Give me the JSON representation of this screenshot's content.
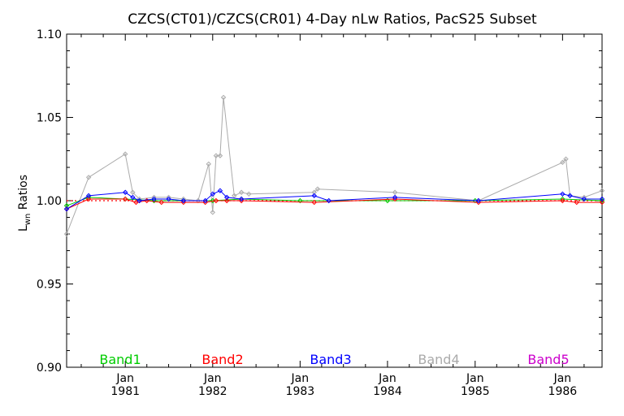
{
  "chart_data": {
    "type": "line",
    "title": "CZCS(CT01)/CZCS(CR01) 4-Day nLw Ratios, PacS25 Subset",
    "ylabel_main": "L",
    "ylabel_sub": "wn",
    "ylabel_rest": " Ratios",
    "xlabel": "",
    "ylim": [
      0.9,
      1.1
    ],
    "xlim": [
      "1980-05-01",
      "1986-06-15"
    ],
    "y_ticks": [
      {
        "value": 0.9,
        "label": "0.90"
      },
      {
        "value": 0.95,
        "label": "0.95"
      },
      {
        "value": 1.0,
        "label": "1.00"
      },
      {
        "value": 1.05,
        "label": "1.05"
      },
      {
        "value": 1.1,
        "label": "1.10"
      }
    ],
    "x_ticks": [
      {
        "date": "1981-01-01",
        "month": "Jan",
        "year": "1981"
      },
      {
        "date": "1982-01-01",
        "month": "Jan",
        "year": "1982"
      },
      {
        "date": "1983-01-01",
        "month": "Jan",
        "year": "1983"
      },
      {
        "date": "1984-01-01",
        "month": "Jan",
        "year": "1984"
      },
      {
        "date": "1985-01-01",
        "month": "Jan",
        "year": "1985"
      },
      {
        "date": "1986-01-01",
        "month": "Jan",
        "year": "1986"
      }
    ],
    "reference_line": {
      "value": 1.0,
      "color": "#ff0000",
      "style": "dotted"
    },
    "legend_placement": "bottom",
    "series": [
      {
        "name": "Band1",
        "color": "#00cc00",
        "values": [
          [
            "1980-05-01",
            0.997
          ],
          [
            "1980-08-01",
            1.002
          ],
          [
            "1981-01-01",
            1.001
          ],
          [
            "1981-05-01",
            1.0
          ],
          [
            "1981-09-01",
            1.0
          ],
          [
            "1982-01-01",
            1.0
          ],
          [
            "1982-05-01",
            1.001
          ],
          [
            "1983-01-01",
            1.0
          ],
          [
            "1984-01-01",
            1.0
          ],
          [
            "1985-01-01",
            1.0
          ],
          [
            "1986-01-01",
            1.001
          ],
          [
            "1986-06-15",
            1.0
          ]
        ]
      },
      {
        "name": "Band2",
        "color": "#ff0000",
        "values": [
          [
            "1980-05-01",
            0.995
          ],
          [
            "1980-08-01",
            1.001
          ],
          [
            "1981-01-01",
            1.001
          ],
          [
            "1981-02-15",
            0.999
          ],
          [
            "1981-04-01",
            1.0
          ],
          [
            "1981-06-01",
            0.999
          ],
          [
            "1981-09-01",
            0.999
          ],
          [
            "1981-12-01",
            0.999
          ],
          [
            "1982-01-15",
            1.0
          ],
          [
            "1982-03-01",
            1.0
          ],
          [
            "1982-05-01",
            1.0
          ],
          [
            "1983-03-01",
            0.999
          ],
          [
            "1984-02-01",
            1.001
          ],
          [
            "1985-01-15",
            0.999
          ],
          [
            "1986-01-01",
            1.0
          ],
          [
            "1986-03-01",
            0.999
          ],
          [
            "1986-06-15",
            0.999
          ]
        ]
      },
      {
        "name": "Band3",
        "color": "#0000ff",
        "values": [
          [
            "1980-05-01",
            0.995
          ],
          [
            "1980-08-01",
            1.003
          ],
          [
            "1981-01-01",
            1.005
          ],
          [
            "1981-02-01",
            1.002
          ],
          [
            "1981-03-01",
            1.0
          ],
          [
            "1981-05-01",
            1.001
          ],
          [
            "1981-07-01",
            1.001
          ],
          [
            "1981-09-01",
            1.0
          ],
          [
            "1981-12-01",
            1.0
          ],
          [
            "1982-01-01",
            1.004
          ],
          [
            "1982-02-01",
            1.006
          ],
          [
            "1982-03-01",
            1.002
          ],
          [
            "1982-05-01",
            1.001
          ],
          [
            "1983-03-01",
            1.003
          ],
          [
            "1983-05-01",
            1.0
          ],
          [
            "1984-02-01",
            1.002
          ],
          [
            "1985-01-15",
            1.0
          ],
          [
            "1986-01-01",
            1.004
          ],
          [
            "1986-02-01",
            1.003
          ],
          [
            "1986-04-01",
            1.001
          ],
          [
            "1986-06-15",
            1.001
          ]
        ]
      },
      {
        "name": "Band4",
        "color": "#aaaaaa",
        "values": [
          [
            "1980-05-01",
            0.98
          ],
          [
            "1980-08-01",
            1.014
          ],
          [
            "1981-01-01",
            1.028
          ],
          [
            "1981-02-01",
            1.005
          ],
          [
            "1981-03-01",
            1.001
          ],
          [
            "1981-05-01",
            1.002
          ],
          [
            "1981-07-01",
            1.002
          ],
          [
            "1981-09-01",
            1.001
          ],
          [
            "1981-11-01",
            1.0
          ],
          [
            "1981-12-15",
            1.022
          ],
          [
            "1982-01-01",
            0.993
          ],
          [
            "1982-01-15",
            1.027
          ],
          [
            "1982-02-01",
            1.027
          ],
          [
            "1982-02-15",
            1.062
          ],
          [
            "1982-04-01",
            1.003
          ],
          [
            "1982-05-01",
            1.005
          ],
          [
            "1982-06-01",
            1.004
          ],
          [
            "1983-03-01",
            1.005
          ],
          [
            "1983-03-15",
            1.007
          ],
          [
            "1984-02-01",
            1.005
          ],
          [
            "1985-01-15",
            1.0
          ],
          [
            "1986-01-01",
            1.023
          ],
          [
            "1986-01-15",
            1.025
          ],
          [
            "1986-02-01",
            1.003
          ],
          [
            "1986-04-01",
            1.002
          ],
          [
            "1986-06-15",
            1.006
          ]
        ]
      },
      {
        "name": "Band5",
        "color": "#cc00cc",
        "values": []
      }
    ]
  }
}
